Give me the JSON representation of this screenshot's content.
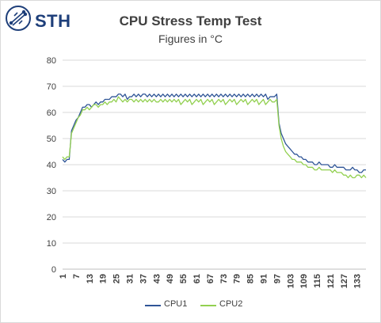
{
  "brand": {
    "logo_text": "STH"
  },
  "colors": {
    "cpu1": "#2f5597",
    "cpu2": "#92d050",
    "grid": "#d9d9d9",
    "text": "#404040"
  },
  "chart_data": {
    "type": "line",
    "title": "CPU Stress Temp Test",
    "subtitle": "Figures in °C",
    "xlabel": "",
    "ylabel": "",
    "ylim": [
      0,
      80
    ],
    "yticks": [
      0,
      10,
      20,
      30,
      40,
      50,
      60,
      70,
      80
    ],
    "xticks": [
      "1",
      "7",
      "13",
      "19",
      "25",
      "31",
      "37",
      "43",
      "49",
      "55",
      "61",
      "67",
      "73",
      "79",
      "85",
      "91",
      "97",
      "103",
      "109",
      "115",
      "121",
      "127",
      "133"
    ],
    "grid": true,
    "legend": "bottom",
    "x_start": 1,
    "x_end": 137,
    "series": [
      {
        "name": "CPU1",
        "values": [
          42,
          41,
          42,
          42,
          53,
          55,
          57,
          58,
          60,
          62,
          62,
          63,
          63,
          62,
          63,
          64,
          63,
          64,
          64,
          65,
          65,
          65,
          66,
          66,
          66,
          67,
          67,
          66,
          67,
          65,
          66,
          66,
          67,
          66,
          67,
          66,
          67,
          67,
          66,
          67,
          66,
          67,
          66,
          67,
          66,
          67,
          66,
          67,
          66,
          67,
          66,
          67,
          66,
          67,
          66,
          67,
          66,
          67,
          66,
          67,
          66,
          67,
          66,
          67,
          66,
          67,
          66,
          67,
          66,
          67,
          66,
          67,
          66,
          67,
          66,
          67,
          66,
          67,
          66,
          67,
          66,
          67,
          66,
          67,
          66,
          67,
          66,
          67,
          66,
          67,
          66,
          67,
          65,
          66,
          66,
          66,
          67,
          56,
          52,
          50,
          48,
          47,
          46,
          45,
          44,
          44,
          43,
          43,
          42,
          42,
          41,
          41,
          41,
          40,
          40,
          41,
          40,
          40,
          40,
          40,
          39,
          39,
          40,
          39,
          39,
          39,
          39,
          38,
          38,
          38,
          39,
          38,
          38,
          37,
          37,
          38,
          38
        ]
      },
      {
        "name": "CPU2",
        "values": [
          43,
          42,
          43,
          43,
          52,
          54,
          56,
          58,
          59,
          61,
          61,
          62,
          61,
          62,
          63,
          63,
          62,
          63,
          63,
          64,
          63,
          64,
          64,
          65,
          64,
          66,
          65,
          64,
          65,
          64,
          65,
          65,
          64,
          65,
          64,
          65,
          64,
          65,
          64,
          65,
          64,
          65,
          64,
          64,
          65,
          64,
          65,
          64,
          65,
          64,
          65,
          64,
          65,
          63,
          64,
          65,
          64,
          65,
          63,
          64,
          65,
          64,
          65,
          63,
          64,
          65,
          64,
          65,
          63,
          64,
          65,
          64,
          65,
          63,
          64,
          65,
          64,
          65,
          63,
          64,
          65,
          64,
          65,
          63,
          64,
          65,
          64,
          65,
          63,
          64,
          65,
          63,
          64,
          65,
          64,
          64,
          65,
          55,
          50,
          47,
          45,
          44,
          43,
          42,
          42,
          41,
          41,
          41,
          40,
          40,
          39,
          39,
          39,
          38,
          38,
          39,
          38,
          38,
          38,
          38,
          38,
          37,
          38,
          37,
          37,
          37,
          36,
          36,
          35,
          36,
          35,
          35,
          36,
          36,
          35,
          36,
          35
        ]
      }
    ]
  }
}
